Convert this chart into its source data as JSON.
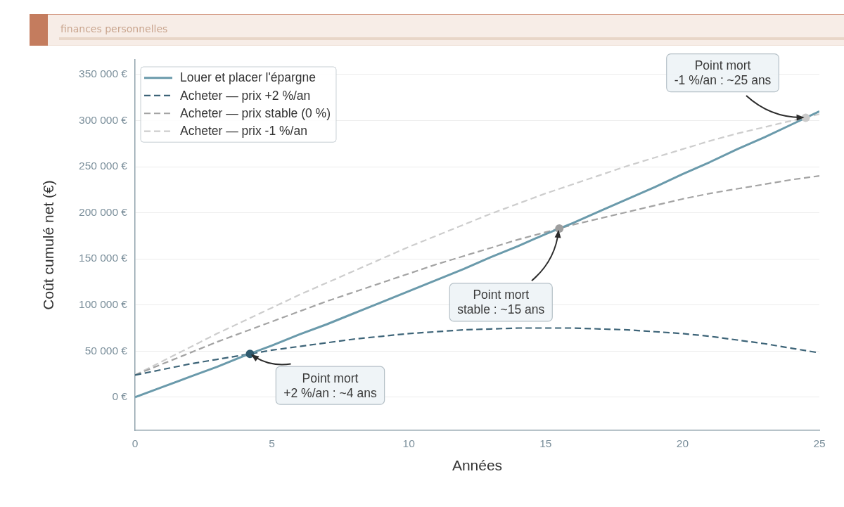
{
  "chart_data": {
    "type": "line",
    "subtitle": "finances personnelles",
    "xlabel": "Années",
    "ylabel": "Coût cumulé net (€)",
    "x": [
      0,
      1,
      2,
      3,
      4,
      5,
      6,
      7,
      8,
      9,
      10,
      11,
      12,
      13,
      14,
      15,
      16,
      17,
      18,
      19,
      20,
      21,
      22,
      23,
      24,
      25
    ],
    "series": [
      {
        "name": "Louer et placer l'épargne",
        "color": "#6a9aab",
        "line_style": "solid",
        "marker": "none",
        "values": [
          0,
          11000,
          22000,
          33000,
          45000,
          56000,
          68000,
          79000,
          91000,
          103000,
          115000,
          127000,
          139000,
          152000,
          164000,
          177000,
          189000,
          202000,
          215000,
          228000,
          242000,
          255000,
          269000,
          282000,
          296000,
          310000
        ]
      },
      {
        "name": "Acheter — prix +2 %/an",
        "color": "#3d6478",
        "line_style": "dashed",
        "marker": "none",
        "values": [
          24000,
          30000,
          36000,
          41000,
          46000,
          51000,
          55000,
          59000,
          63000,
          66000,
          69000,
          71000,
          73000,
          74000,
          75000,
          75000,
          75000,
          74000,
          73000,
          71000,
          69000,
          66000,
          62000,
          58000,
          53000,
          48000
        ]
      },
      {
        "name": "Acheter — prix stable (0 %)",
        "color": "#a3a3a3",
        "line_style": "dashed",
        "marker": "none",
        "values": [
          24000,
          36000,
          48000,
          60000,
          71000,
          82000,
          93000,
          104000,
          114000,
          124000,
          134000,
          144000,
          153000,
          162000,
          171000,
          179000,
          187000,
          194000,
          201000,
          208000,
          215000,
          221000,
          226000,
          231000,
          236000,
          240000
        ]
      },
      {
        "name": "Acheter — prix -1 %/an",
        "color": "#cdcdcd",
        "line_style": "dashed",
        "marker": "none",
        "values": [
          24000,
          39000,
          54000,
          69000,
          83000,
          97000,
          111000,
          124000,
          137000,
          150000,
          163000,
          175000,
          187000,
          199000,
          210000,
          221000,
          231000,
          241000,
          251000,
          260000,
          269000,
          278000,
          286000,
          293000,
          300000,
          307000
        ]
      },
      {
        "type": "scatter",
        "marker": "circle",
        "x": [
          4.2,
          15.5,
          24.5
        ],
        "values": [
          47000,
          183000,
          303000
        ],
        "colors": [
          "#2f5a6e",
          "#9e9e9e",
          "#cbcbcb"
        ]
      }
    ],
    "xlim": [
      0,
      25
    ],
    "xticks": [
      0,
      5,
      10,
      15,
      20,
      25
    ],
    "ylim": [
      -36000,
      366000
    ],
    "yticks": [
      {
        "value": 0,
        "label": "0 €"
      },
      {
        "value": 50000,
        "label": "50 000 €"
      },
      {
        "value": 100000,
        "label": "100 000 €"
      },
      {
        "value": 150000,
        "label": "150 000 €"
      },
      {
        "value": 200000,
        "label": "200 000 €"
      },
      {
        "value": 250000,
        "label": "250 000 €"
      },
      {
        "value": 300000,
        "label": "300 000 €"
      },
      {
        "value": 350000,
        "label": "350 000 €"
      }
    ],
    "grid": "y",
    "legend": "top left",
    "annotations": [
      {
        "text": "Point mort\n+2 %/an : ~4 ans",
        "x": 4.2,
        "y": 47000
      },
      {
        "text": "Point mort\nstable : ~15 ans",
        "x": 15.5,
        "y": 183000
      },
      {
        "text": "Point mort\n-1 %/an : ~25 ans",
        "x": 24.5,
        "y": 303000
      }
    ]
  }
}
